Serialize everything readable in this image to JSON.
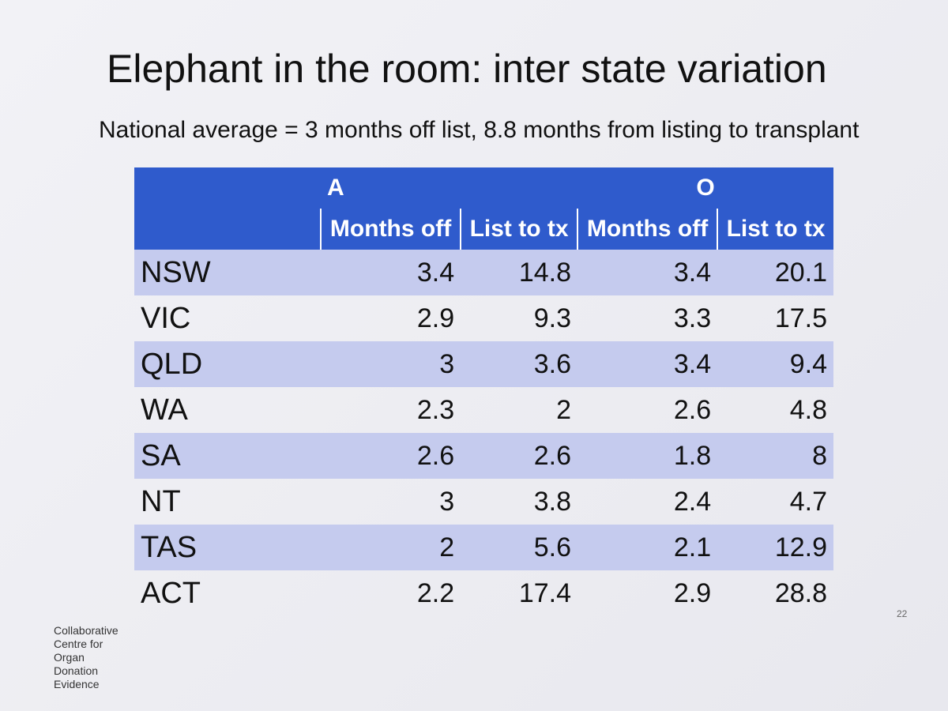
{
  "header": {
    "title": "Elephant in the room: inter state variation",
    "subtitle": "National average = 3 months off list, 8.8 months from listing to transplant"
  },
  "table": {
    "groups": [
      "A",
      "O"
    ],
    "columns": [
      "Months off",
      "List to tx",
      "Months off",
      "List to tx"
    ],
    "rows": [
      [
        "NSW",
        "3.4",
        "14.8",
        "3.4",
        "20.1"
      ],
      [
        "VIC",
        "2.9",
        "9.3",
        "3.3",
        "17.5"
      ],
      [
        "QLD",
        "3",
        "3.6",
        "3.4",
        "9.4"
      ],
      [
        "WA",
        "2.3",
        "2",
        "2.6",
        "4.8"
      ],
      [
        "SA",
        "2.6",
        "2.6",
        "1.8",
        "8"
      ],
      [
        "NT",
        "3",
        "3.8",
        "2.4",
        "4.7"
      ],
      [
        "TAS",
        "2",
        "5.6",
        "2.1",
        "12.9"
      ],
      [
        "ACT",
        "2.2",
        "17.4",
        "2.9",
        "28.8"
      ]
    ]
  },
  "footer": {
    "logo": [
      "Collaborative",
      "Centre for",
      "Organ",
      "Donation",
      "Evidence"
    ],
    "page_number": "22"
  }
}
